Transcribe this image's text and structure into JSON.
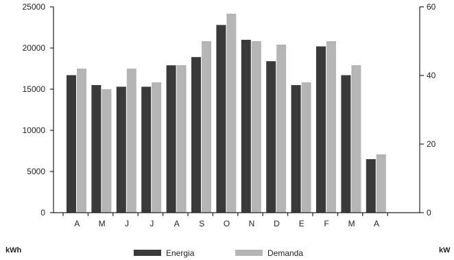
{
  "chart_data": {
    "type": "bar",
    "title": "",
    "categories": [
      "A",
      "M",
      "J",
      "J",
      "A",
      "S",
      "O",
      "N",
      "D",
      "E",
      "F",
      "M",
      "A"
    ],
    "series": [
      {
        "name": "Energia",
        "axis": "left",
        "color": "#3a3a3a",
        "values": [
          16700,
          15500,
          15300,
          15300,
          17900,
          18900,
          22800,
          21000,
          18400,
          15500,
          20200,
          16700,
          6500
        ]
      },
      {
        "name": "Demanda",
        "axis": "right",
        "color": "#b5b5b5",
        "values": [
          42,
          36,
          42,
          38,
          43,
          50,
          58,
          50,
          49,
          38,
          50,
          43,
          17
        ]
      }
    ],
    "y_left": {
      "label": "kWh",
      "ylim": [
        0,
        25000
      ],
      "ticks": [
        0,
        5000,
        10000,
        15000,
        20000,
        25000
      ]
    },
    "y_right": {
      "label": "kW",
      "ylim": [
        0,
        60
      ],
      "ticks": [
        0,
        20,
        40,
        60
      ]
    },
    "legend": {
      "position": "bottom-center",
      "entries": [
        "Energia",
        "Demanda"
      ]
    },
    "grid": false
  }
}
